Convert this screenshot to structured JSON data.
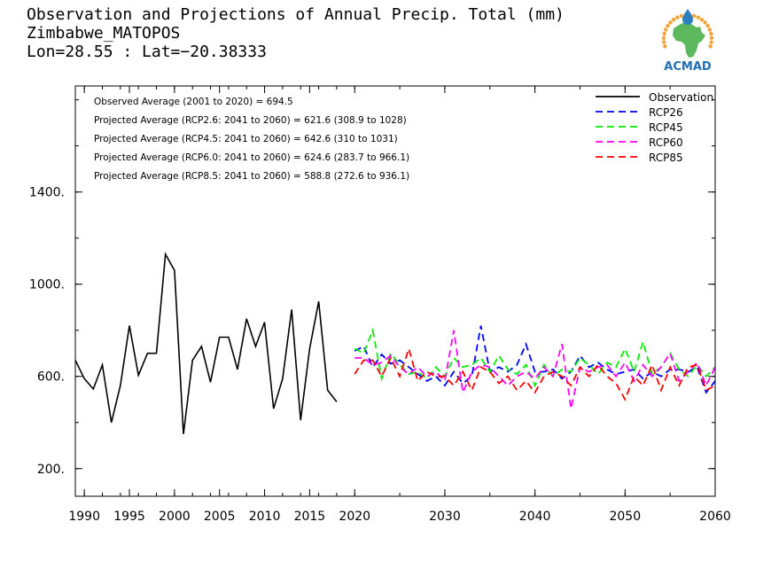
{
  "header": {
    "title": "Observation and Projections of Annual Precip. Total (mm)",
    "location": "Zimbabwe_MATOPOS",
    "coords": "Lon=28.55 : Lat=−20.38333"
  },
  "logo": {
    "text": "ACMAD",
    "color": "#1f6fb2",
    "map_color": "#5cb85c",
    "drop_color": "#2b7fc1",
    "ring_color": "#f2a23a"
  },
  "chart_data": {
    "type": "line",
    "xlim": [
      1989,
      2060
    ],
    "ylim": [
      80,
      1860
    ],
    "y_ticks": [
      200,
      600,
      1000,
      1400
    ],
    "y_tick_labels": [
      "200.",
      "600.",
      "1000.",
      "1400."
    ],
    "x_ticks": [
      1990,
      1995,
      2000,
      2005,
      2010,
      2015,
      2020,
      2030,
      2040,
      2050,
      2060
    ],
    "x_tick_labels": [
      "1990",
      "1995",
      "2000",
      "2005",
      "2010",
      "2015",
      "2020",
      "2030",
      "2040",
      "2050",
      "2060"
    ],
    "annotations": [
      "Observed Average (2001 to 2020) = 694.5",
      "Projected Average (RCP2.6: 2041 to 2060) =  621.6 (308.9 to 1028)",
      "Projected Average (RCP4.5: 2041 to 2060) =  642.6 (310 to 1031)",
      "Projected Average (RCP6.0: 2041 to 2060) =  624.6 (283.7 to 966.1)",
      "Projected Average (RCP8.5: 2041 to 2060) =  588.8 (272.6 to 936.1)"
    ],
    "legend_position": "top-right",
    "series": [
      {
        "name": "Observation",
        "color": "#000000",
        "dashed": false,
        "x": [
          1989,
          1990,
          1991,
          1992,
          1993,
          1994,
          1995,
          1996,
          1997,
          1998,
          1999,
          2000,
          2001,
          2002,
          2003,
          2004,
          2005,
          2006,
          2007,
          2008,
          2009,
          2010,
          2011,
          2012,
          2013,
          2014,
          2015,
          2016,
          2017,
          2018,
          2019,
          2020
        ],
        "values": [
          670,
          590,
          545,
          650,
          400,
          560,
          820,
          605,
          700,
          700,
          1130,
          1060,
          350,
          670,
          730,
          575,
          770,
          770,
          630,
          850,
          730,
          835,
          460,
          590,
          890,
          410,
          720,
          925,
          540,
          490,
          null,
          null
        ]
      },
      {
        "name": "RCP26",
        "color": "#0000ff",
        "dashed": true,
        "x": [
          2020,
          2021,
          2022,
          2023,
          2024,
          2025,
          2026,
          2027,
          2028,
          2029,
          2030,
          2031,
          2032,
          2033,
          2034,
          2035,
          2036,
          2037,
          2038,
          2039,
          2040,
          2041,
          2042,
          2043,
          2044,
          2045,
          2046,
          2047,
          2048,
          2049,
          2050,
          2051,
          2052,
          2053,
          2054,
          2055,
          2056,
          2057,
          2058,
          2059,
          2060
        ],
        "values": [
          710,
          730,
          640,
          695,
          655,
          670,
          640,
          610,
          580,
          600,
          560,
          620,
          570,
          600,
          820,
          620,
          640,
          620,
          650,
          740,
          620,
          620,
          630,
          590,
          620,
          690,
          640,
          660,
          630,
          610,
          620,
          630,
          590,
          620,
          600,
          630,
          630,
          620,
          640,
          530,
          580
        ]
      },
      {
        "name": "RCP45",
        "color": "#00ee00",
        "dashed": true,
        "x": [
          2020,
          2021,
          2022,
          2023,
          2024,
          2025,
          2026,
          2027,
          2028,
          2029,
          2030,
          2031,
          2032,
          2033,
          2034,
          2035,
          2036,
          2037,
          2038,
          2039,
          2040,
          2041,
          2042,
          2043,
          2044,
          2045,
          2046,
          2047,
          2048,
          2049,
          2050,
          2051,
          2052,
          2053,
          2054,
          2055,
          2056,
          2057,
          2058,
          2059,
          2060
        ],
        "values": [
          720,
          700,
          800,
          590,
          700,
          650,
          610,
          620,
          590,
          640,
          600,
          680,
          640,
          650,
          680,
          620,
          690,
          630,
          610,
          650,
          560,
          650,
          600,
          630,
          620,
          680,
          650,
          610,
          660,
          640,
          720,
          620,
          750,
          610,
          640,
          700,
          630,
          600,
          650,
          600,
          640
        ]
      },
      {
        "name": "RCP60",
        "color": "#ff00ff",
        "dashed": true,
        "x": [
          2020,
          2021,
          2022,
          2023,
          2024,
          2025,
          2026,
          2027,
          2028,
          2029,
          2030,
          2031,
          2032,
          2033,
          2034,
          2035,
          2036,
          2037,
          2038,
          2039,
          2040,
          2041,
          2042,
          2043,
          2044,
          2045,
          2046,
          2047,
          2048,
          2049,
          2050,
          2051,
          2052,
          2053,
          2054,
          2055,
          2056,
          2057,
          2058,
          2059,
          2060
        ],
        "values": [
          680,
          680,
          650,
          660,
          690,
          640,
          610,
          640,
          600,
          620,
          580,
          800,
          530,
          620,
          650,
          640,
          600,
          560,
          600,
          620,
          590,
          640,
          600,
          740,
          460,
          640,
          620,
          640,
          650,
          600,
          660,
          580,
          650,
          600,
          640,
          700,
          580,
          620,
          660,
          560,
          640
        ]
      },
      {
        "name": "RCP85",
        "color": "#ff0000",
        "dashed": true,
        "x": [
          2020,
          2021,
          2022,
          2023,
          2024,
          2025,
          2026,
          2027,
          2028,
          2029,
          2030,
          2031,
          2032,
          2033,
          2034,
          2035,
          2036,
          2037,
          2038,
          2039,
          2040,
          2041,
          2042,
          2043,
          2044,
          2045,
          2046,
          2047,
          2048,
          2049,
          2050,
          2051,
          2052,
          2053,
          2054,
          2055,
          2056,
          2057,
          2058,
          2059,
          2060
        ],
        "values": [
          610,
          670,
          670,
          600,
          680,
          600,
          720,
          580,
          620,
          600,
          600,
          560,
          620,
          540,
          640,
          620,
          570,
          600,
          540,
          580,
          530,
          600,
          620,
          600,
          560,
          640,
          600,
          650,
          600,
          570,
          500,
          600,
          560,
          650,
          540,
          640,
          560,
          640,
          650,
          540,
          560
        ]
      }
    ]
  }
}
